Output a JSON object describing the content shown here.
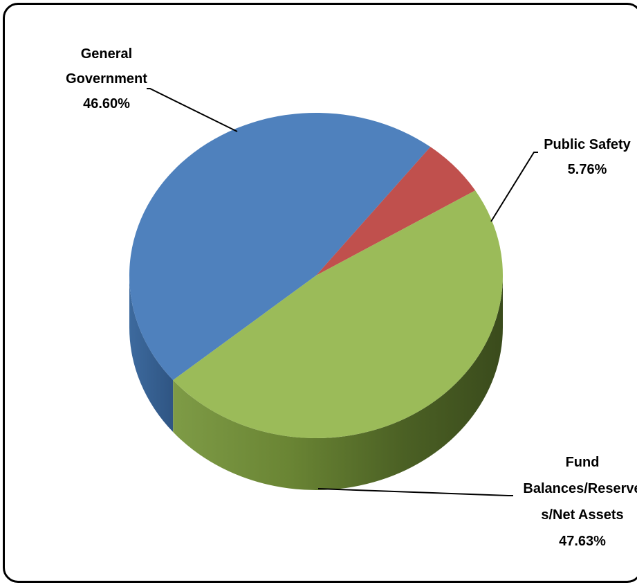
{
  "chart_data": {
    "type": "pie",
    "title": "",
    "slices": [
      {
        "label_lines": [
          "General",
          "Government"
        ],
        "percent_label": "46.60%",
        "value": 46.6,
        "color": "#4F81BD"
      },
      {
        "label_lines": [
          "Public Safety"
        ],
        "percent_label": "5.76%",
        "value": 5.76,
        "color": "#C0504D"
      },
      {
        "label_lines": [
          "Fund",
          "Balances/Reserve",
          "s/Net Assets"
        ],
        "percent_label": "47.63%",
        "value": 47.63,
        "color": "#9BBB59"
      }
    ],
    "legend": "none",
    "style": "3d"
  }
}
